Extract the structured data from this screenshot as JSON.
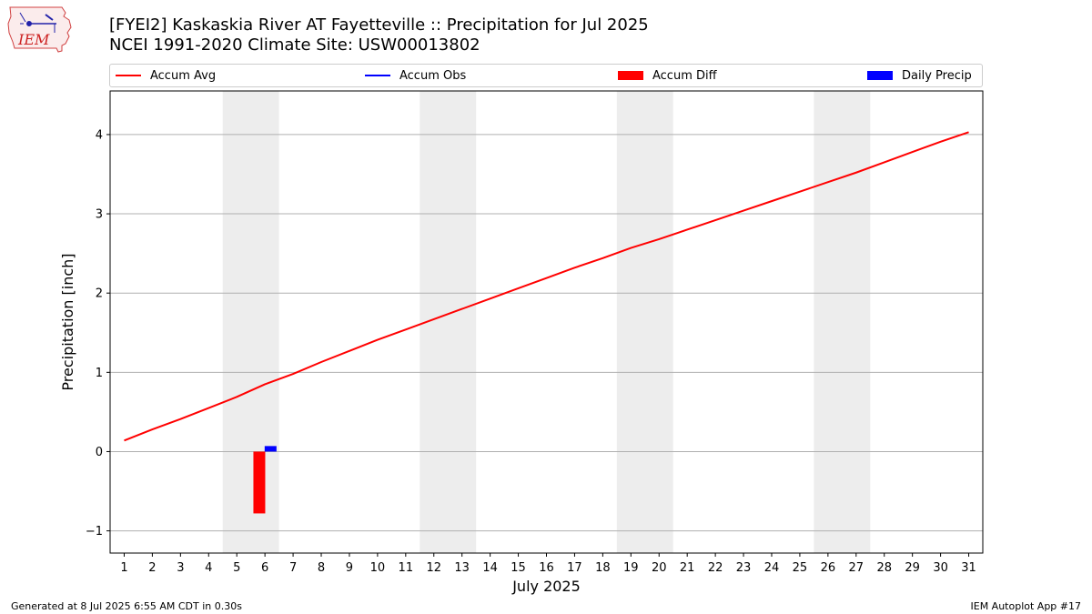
{
  "header": {
    "title_line1": "[FYEI2] Kaskaskia River  AT Fayetteville :: Precipitation for Jul 2025",
    "title_line2": "NCEI 1991-2020 Climate Site: USW00013802",
    "logo_text": "IEM"
  },
  "legend": {
    "items": [
      {
        "label": "Accum Avg",
        "kind": "line",
        "color": "#ff0000"
      },
      {
        "label": "Accum Obs",
        "kind": "line",
        "color": "#0000ff"
      },
      {
        "label": "Accum Diff",
        "kind": "patch",
        "color": "#ff0000"
      },
      {
        "label": "Daily Precip",
        "kind": "patch",
        "color": "#0000ff"
      }
    ]
  },
  "footer": {
    "left": "Generated at 8 Jul 2025 6:55 AM CDT in 0.30s",
    "right": "IEM Autoplot App #17"
  },
  "chart_data": {
    "type": "line",
    "title": "[FYEI2] Kaskaskia River  AT Fayetteville :: Precipitation for Jul 2025",
    "xlabel": "July 2025",
    "ylabel": "Precipitation [inch]",
    "xlim": [
      0.5,
      31.5
    ],
    "ylim": [
      -1.28,
      4.55
    ],
    "yticks": [
      -1,
      0,
      1,
      2,
      3,
      4
    ],
    "ytick_labels": [
      "−1",
      "0",
      "1",
      "2",
      "3",
      "4"
    ],
    "x": [
      1,
      2,
      3,
      4,
      5,
      6,
      7,
      8,
      9,
      10,
      11,
      12,
      13,
      14,
      15,
      16,
      17,
      18,
      19,
      20,
      21,
      22,
      23,
      24,
      25,
      26,
      27,
      28,
      29,
      30,
      31
    ],
    "grid": "y",
    "legend_position": "top",
    "weekend_shading": [
      [
        4.5,
        6.5
      ],
      [
        11.5,
        13.5
      ],
      [
        18.5,
        20.5
      ],
      [
        25.5,
        27.5
      ]
    ],
    "series": [
      {
        "name": "Accum Avg",
        "kind": "line",
        "color": "#ff0000",
        "values": [
          0.14,
          0.28,
          0.41,
          0.55,
          0.69,
          0.85,
          0.98,
          1.13,
          1.27,
          1.41,
          1.54,
          1.67,
          1.8,
          1.93,
          2.06,
          2.19,
          2.32,
          2.44,
          2.57,
          2.68,
          2.8,
          2.92,
          3.04,
          3.16,
          3.28,
          3.4,
          3.52,
          3.65,
          3.78,
          3.91,
          4.03
        ]
      },
      {
        "name": "Accum Diff",
        "kind": "bar",
        "color": "#ff0000",
        "points": [
          {
            "x": 6,
            "value": -0.78
          }
        ]
      },
      {
        "name": "Daily Precip",
        "kind": "bar",
        "color": "#0000ff",
        "points": [
          {
            "x": 6,
            "value": 0.07
          }
        ]
      }
    ]
  }
}
